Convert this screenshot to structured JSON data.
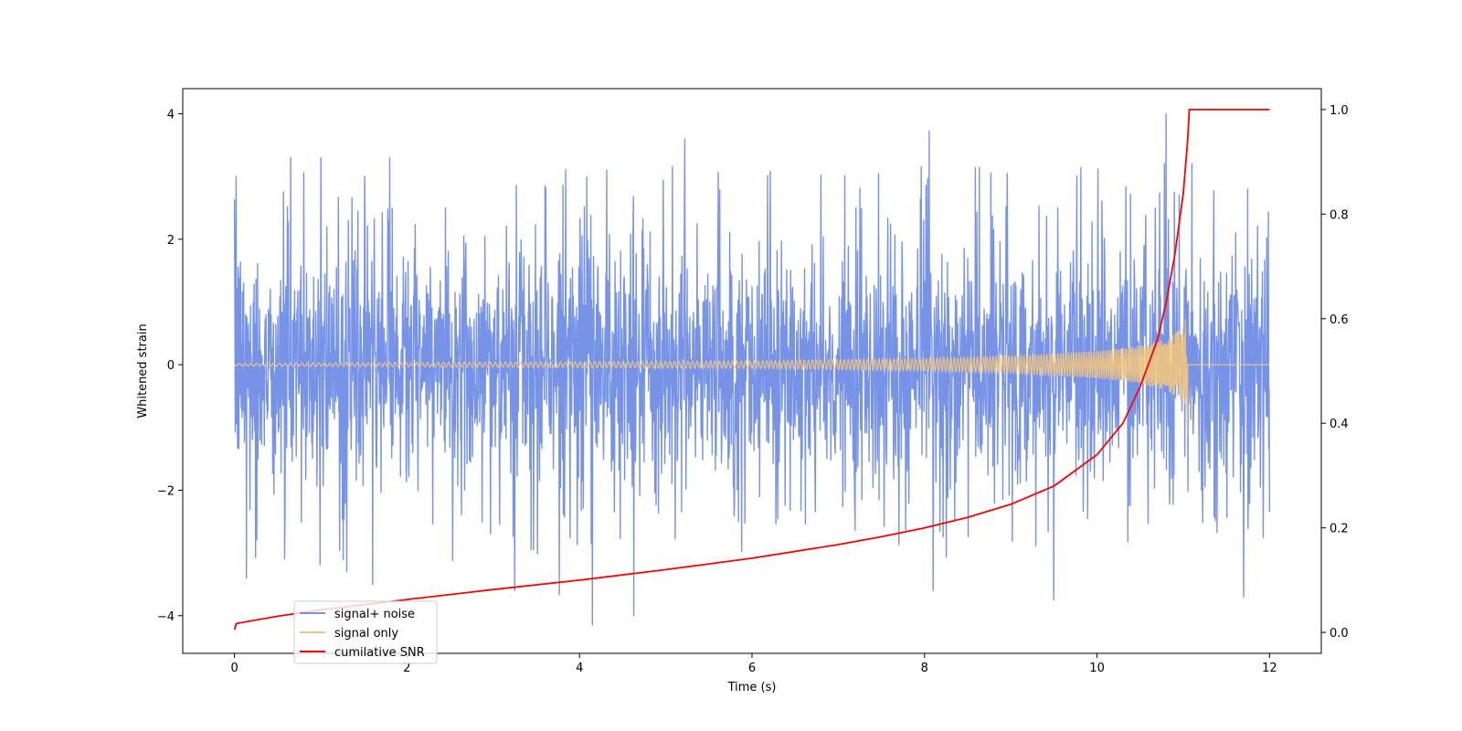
{
  "chart_data": {
    "type": "line",
    "title": "",
    "xlabel": "Time (s)",
    "ylabel": "Whitened strain",
    "xlim": [
      -0.6,
      12.6
    ],
    "ylim": [
      -4.6,
      4.4
    ],
    "y2lim": [
      -0.04,
      1.04
    ],
    "xticks": [
      0,
      2,
      4,
      6,
      8,
      10,
      12
    ],
    "yticks": [
      -4,
      -2,
      0,
      2,
      4
    ],
    "y2ticks": [
      0.0,
      0.2,
      0.4,
      0.6,
      0.8,
      1.0
    ],
    "xtick_labels": [
      "0",
      "2",
      "4",
      "6",
      "8",
      "10",
      "12"
    ],
    "ytick_labels": [
      "−4",
      "−2",
      "0",
      "2",
      "4"
    ],
    "y2tick_labels": [
      "0.0",
      "0.2",
      "0.4",
      "0.6",
      "0.8",
      "1.0"
    ],
    "grid": false,
    "legend_position": "lower-left",
    "series": [
      {
        "name": "signal+ noise",
        "axis": "left",
        "color": "#7793e8",
        "x_range": [
          0,
          12
        ],
        "noise_band": [
          -1.7,
          1.8
        ],
        "peak_spikes": [
          {
            "x": 0.02,
            "y": 3.0
          },
          {
            "x": 0.14,
            "y": -3.4
          },
          {
            "x": 0.65,
            "y": 3.3
          },
          {
            "x": 1.0,
            "y": 3.3
          },
          {
            "x": 1.3,
            "y": -3.3
          },
          {
            "x": 1.6,
            "y": -3.5
          },
          {
            "x": 1.8,
            "y": 3.3
          },
          {
            "x": 3.25,
            "y": -3.6
          },
          {
            "x": 4.15,
            "y": -4.15
          },
          {
            "x": 4.63,
            "y": -4.0
          },
          {
            "x": 5.22,
            "y": 3.6
          },
          {
            "x": 8.1,
            "y": -3.6
          },
          {
            "x": 9.5,
            "y": -3.75
          },
          {
            "x": 10.8,
            "y": 4.0
          },
          {
            "x": 11.1,
            "y": 3.2
          },
          {
            "x": 11.7,
            "y": -3.7
          }
        ]
      },
      {
        "name": "signal only",
        "axis": "left",
        "color": "#f6c77a",
        "x_range": [
          0,
          12
        ],
        "merger_time": 11.05,
        "envelope": {
          "x": [
            0,
            6,
            8,
            9,
            10,
            10.5,
            10.8,
            11.0,
            11.05
          ],
          "y": [
            0.02,
            0.06,
            0.1,
            0.14,
            0.22,
            0.3,
            0.42,
            0.6,
            0.85
          ]
        }
      },
      {
        "name": "cumilative SNR",
        "axis": "right",
        "color": "#ff0000",
        "x": [
          0,
          0.02,
          0.5,
          1,
          2,
          3,
          4,
          5,
          6,
          7,
          7.5,
          8,
          8.5,
          9,
          9.5,
          10,
          10.3,
          10.5,
          10.7,
          10.8,
          10.9,
          11.0,
          11.05,
          11.07,
          12
        ],
        "y": [
          0.005,
          0.017,
          0.031,
          0.043,
          0.063,
          0.082,
          0.1,
          0.12,
          0.142,
          0.168,
          0.183,
          0.2,
          0.22,
          0.245,
          0.28,
          0.34,
          0.4,
          0.47,
          0.56,
          0.63,
          0.72,
          0.84,
          0.94,
          1.0,
          1.0
        ]
      }
    ]
  }
}
